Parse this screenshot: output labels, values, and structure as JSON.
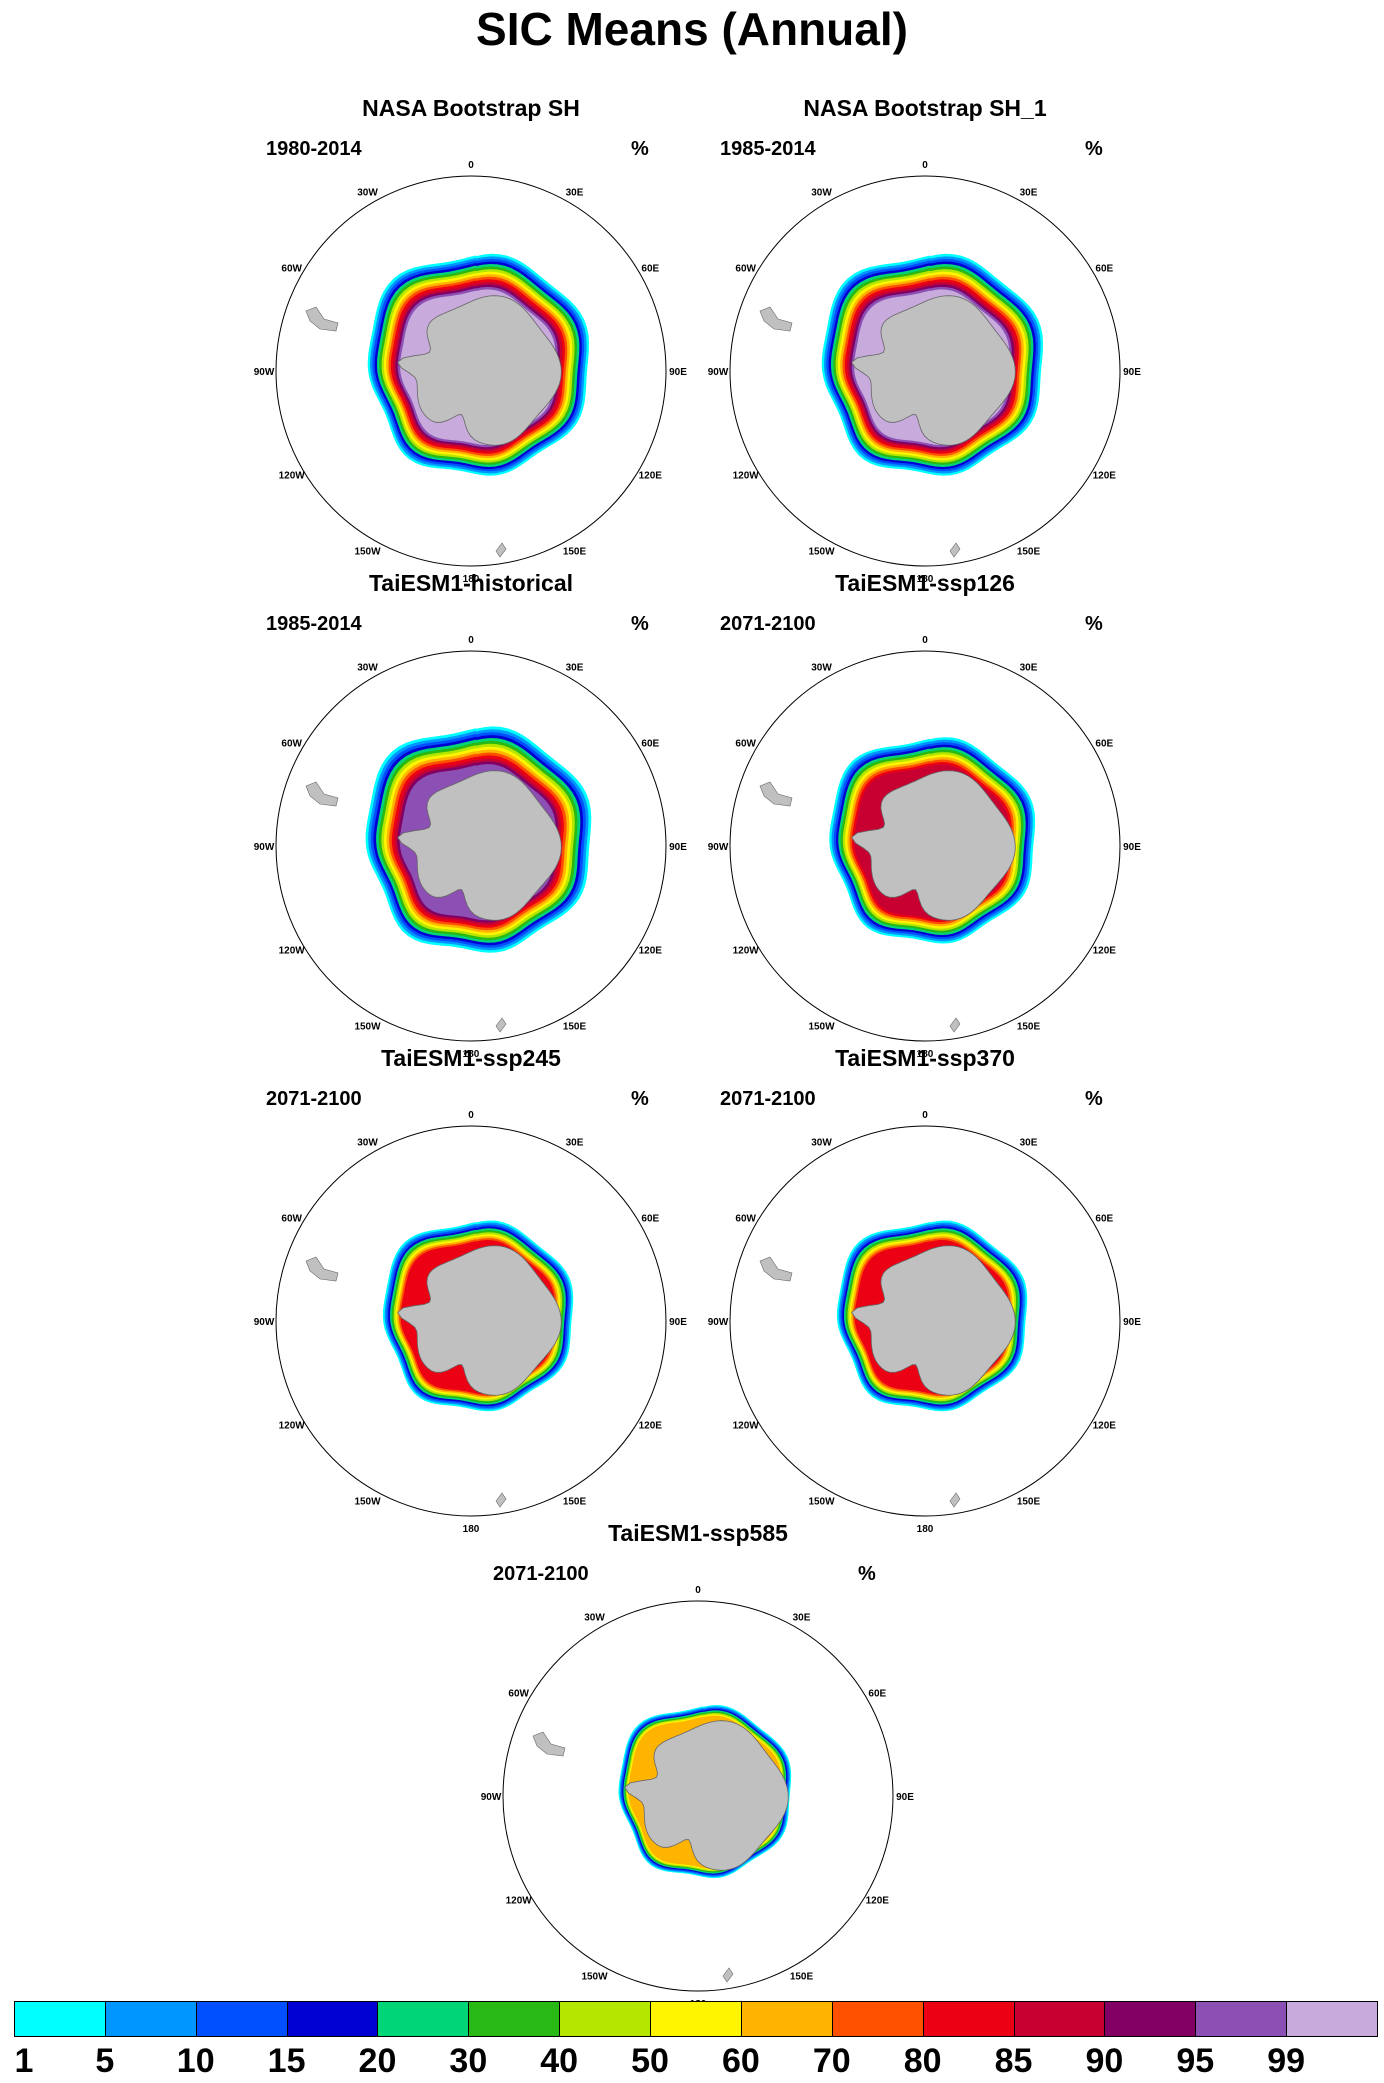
{
  "figure_title": "SIC Means (Annual)",
  "units_label": "%",
  "panels": [
    {
      "title": "NASA Bootstrap SH",
      "period": "1980-2014",
      "extent": 1.0,
      "intensity": 1.0
    },
    {
      "title": "NASA Bootstrap SH_1",
      "period": "1985-2014",
      "extent": 1.0,
      "intensity": 1.0
    },
    {
      "title": "TaiESM1-historical",
      "period": "1985-2014",
      "extent": 1.02,
      "intensity": 0.96
    },
    {
      "title": "TaiESM1-ssp126",
      "period": "2071-2100",
      "extent": 0.93,
      "intensity": 0.8
    },
    {
      "title": "TaiESM1-ssp245",
      "period": "2071-2100",
      "extent": 0.86,
      "intensity": 0.72
    },
    {
      "title": "TaiESM1-ssp370",
      "period": "2071-2100",
      "extent": 0.86,
      "intensity": 0.72
    },
    {
      "title": "TaiESM1-ssp585",
      "period": "2071-2100",
      "extent": 0.78,
      "intensity": 0.62
    }
  ],
  "longitude_labels": [
    "0",
    "30E",
    "60E",
    "90E",
    "120E",
    "150E",
    "180",
    "150W",
    "120W",
    "90W",
    "60W",
    "30W"
  ],
  "colorbar": {
    "levels": [
      "1",
      "5",
      "10",
      "15",
      "20",
      "30",
      "40",
      "50",
      "60",
      "70",
      "80",
      "85",
      "90",
      "95",
      "99"
    ],
    "colors": [
      "#00ffff",
      "#0096ff",
      "#0050ff",
      "#0000d2",
      "#00d678",
      "#28b914",
      "#b4e600",
      "#fff500",
      "#ffb400",
      "#ff5000",
      "#eb0014",
      "#c80032",
      "#820064",
      "#8c50b4",
      "#c8aadc"
    ]
  }
}
